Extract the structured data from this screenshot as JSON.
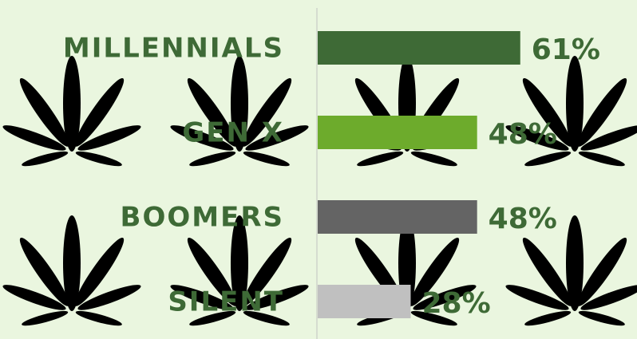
{
  "chart_data": {
    "type": "bar",
    "categories": [
      "MILLENNIALS",
      "GEN X",
      "BOOMERS",
      "SILENT"
    ],
    "values": [
      61,
      48,
      48,
      28
    ],
    "value_labels": [
      "61%",
      "48%",
      "48%",
      "28%"
    ],
    "colors": [
      "#3e6a36",
      "#6dab2c",
      "#646464",
      "#c0c0c0"
    ]
  }
}
